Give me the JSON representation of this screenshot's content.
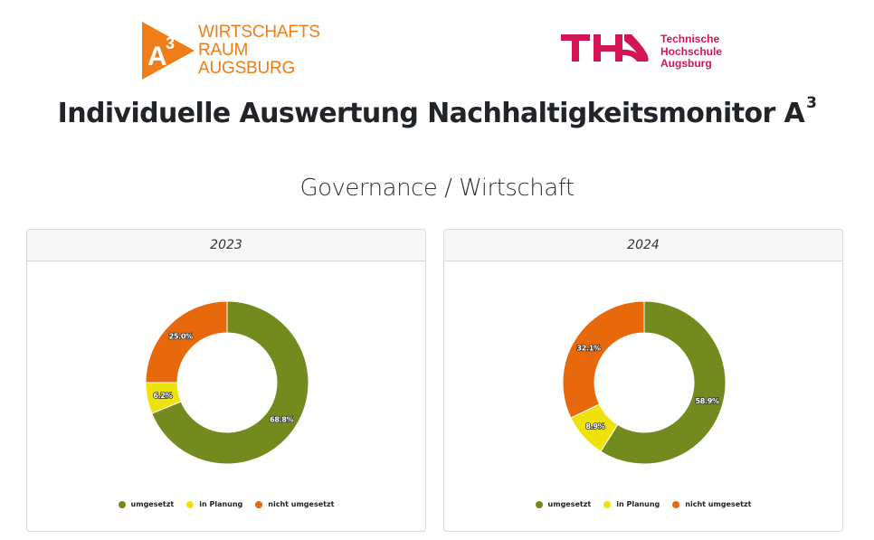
{
  "logos": {
    "left": {
      "lines": [
        "WIRTSCHAFTS",
        "RAUM",
        "AUGSBURG"
      ],
      "mark": "A3",
      "color": "#ee7d1a"
    },
    "right": {
      "mark": "THA",
      "lines": [
        "Technische",
        "Hochschule",
        "Augsburg"
      ],
      "color": "#d41555"
    }
  },
  "header": {
    "title": "Individuelle Auswertung Nachhaltigkeitsmonitor A",
    "title_sup": "3"
  },
  "section": {
    "title": "Governance / Wirtschaft"
  },
  "legend": [
    {
      "label": "umgesetzt",
      "color": "#738a1e"
    },
    {
      "label": "in Planung",
      "color": "#ede30b"
    },
    {
      "label": "nicht umgesetzt",
      "color": "#e8680c"
    }
  ],
  "chart_data": [
    {
      "type": "pie",
      "variant": "donut",
      "title": "2023",
      "categories": [
        "umgesetzt",
        "in Planung",
        "nicht umgesetzt"
      ],
      "values": [
        68.8,
        6.2,
        25.0
      ],
      "labels": [
        "68.8%",
        "6.2%",
        "25.0%"
      ],
      "colors": [
        "#738a1e",
        "#ede30b",
        "#e8680c"
      ],
      "legend_position": "bottom"
    },
    {
      "type": "pie",
      "variant": "donut",
      "title": "2024",
      "categories": [
        "umgesetzt",
        "in Planung",
        "nicht umgesetzt"
      ],
      "values": [
        58.9,
        8.9,
        32.1
      ],
      "labels": [
        "58.9%",
        "8.9%",
        "32.1%"
      ],
      "colors": [
        "#738a1e",
        "#ede30b",
        "#e8680c"
      ],
      "legend_position": "bottom"
    }
  ]
}
